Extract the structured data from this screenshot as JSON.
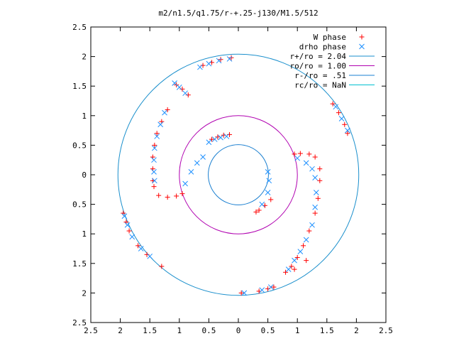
{
  "chart_data": {
    "type": "scatter",
    "title": "m2/n1.5/q1.75/r-+.25-j130/M1.5/512",
    "xlim": [
      -2.5,
      2.5
    ],
    "ylim": [
      -2.5,
      2.5
    ],
    "x_tick_values": [
      -2.5,
      -2,
      -1.5,
      -1,
      -0.5,
      0,
      0.5,
      1,
      1.5,
      2,
      2.5
    ],
    "x_tick_labels": [
      "2.5",
      "2",
      "1.5",
      "1",
      "0.5",
      "0",
      "0.5",
      "1",
      "1.5",
      "2",
      "2.5"
    ],
    "y_tick_values": [
      2.5,
      2,
      1.5,
      1,
      0.5,
      0,
      -0.5,
      -1,
      -1.5,
      -2,
      -2.5
    ],
    "y_tick_labels": [
      "2.5",
      "2",
      "1.5",
      "1",
      "0.5",
      "0",
      "0.5",
      "1",
      "1.5",
      "2",
      "2.5"
    ],
    "legend_position": "top-right",
    "grid": false,
    "series": [
      {
        "name": "W phase",
        "marker": "plus",
        "color": "#ff0000",
        "points": [
          [
            -0.45,
            0.6
          ],
          [
            -0.35,
            0.64
          ],
          [
            -0.25,
            0.67
          ],
          [
            -0.15,
            0.68
          ],
          [
            -0.85,
            1.35
          ],
          [
            -0.95,
            1.45
          ],
          [
            -1.05,
            1.52
          ],
          [
            -0.6,
            1.85
          ],
          [
            -0.45,
            1.9
          ],
          [
            -0.3,
            1.95
          ],
          [
            -0.12,
            1.98
          ],
          [
            -1.2,
            1.1
          ],
          [
            -1.3,
            0.9
          ],
          [
            -1.38,
            0.7
          ],
          [
            -1.42,
            0.5
          ],
          [
            -1.45,
            0.3
          ],
          [
            -1.45,
            0.1
          ],
          [
            -1.45,
            -0.1
          ],
          [
            -1.43,
            -0.2
          ],
          [
            -1.35,
            -0.35
          ],
          [
            -1.2,
            -0.38
          ],
          [
            -1.05,
            -0.36
          ],
          [
            -0.95,
            -0.32
          ],
          [
            0.95,
            0.35
          ],
          [
            1.05,
            0.36
          ],
          [
            1.2,
            0.35
          ],
          [
            1.3,
            0.3
          ],
          [
            1.38,
            0.1
          ],
          [
            1.38,
            -0.1
          ],
          [
            1.35,
            -0.4
          ],
          [
            1.3,
            -0.65
          ],
          [
            1.2,
            -0.95
          ],
          [
            1.1,
            -1.2
          ],
          [
            1.0,
            -1.4
          ],
          [
            0.9,
            -1.55
          ],
          [
            0.8,
            -1.65
          ],
          [
            1.15,
            -1.45
          ],
          [
            0.95,
            -1.6
          ],
          [
            0.3,
            -0.63
          ],
          [
            0.35,
            -0.6
          ],
          [
            0.45,
            -0.52
          ],
          [
            0.55,
            -0.42
          ],
          [
            1.6,
            1.2
          ],
          [
            1.7,
            1.05
          ],
          [
            1.8,
            0.85
          ],
          [
            1.85,
            0.7
          ],
          [
            -1.95,
            -0.65
          ],
          [
            -1.9,
            -0.8
          ],
          [
            -1.85,
            -0.95
          ],
          [
            -1.7,
            -1.2
          ],
          [
            -1.55,
            -1.35
          ],
          [
            -1.3,
            -1.55
          ],
          [
            0.05,
            -2.0
          ],
          [
            0.35,
            -1.97
          ],
          [
            0.5,
            -1.93
          ],
          [
            0.6,
            -1.9
          ]
        ]
      },
      {
        "name": "drho phase",
        "marker": "cross",
        "color": "#1e90ff",
        "points": [
          [
            -0.5,
            0.55
          ],
          [
            -0.4,
            0.6
          ],
          [
            -0.3,
            0.63
          ],
          [
            -0.2,
            0.65
          ],
          [
            -0.9,
            1.38
          ],
          [
            -1.0,
            1.48
          ],
          [
            -1.08,
            1.55
          ],
          [
            -0.65,
            1.82
          ],
          [
            -0.5,
            1.88
          ],
          [
            -0.33,
            1.93
          ],
          [
            -0.15,
            1.96
          ],
          [
            -1.25,
            1.05
          ],
          [
            -1.32,
            0.85
          ],
          [
            -1.38,
            0.65
          ],
          [
            -1.42,
            0.45
          ],
          [
            -1.43,
            0.25
          ],
          [
            -1.43,
            0.05
          ],
          [
            -1.42,
            -0.1
          ],
          [
            -0.9,
            -0.15
          ],
          [
            -0.8,
            0.05
          ],
          [
            -0.7,
            0.2
          ],
          [
            -0.6,
            0.3
          ],
          [
            1.0,
            0.28
          ],
          [
            1.15,
            0.2
          ],
          [
            1.25,
            0.1
          ],
          [
            1.3,
            -0.05
          ],
          [
            1.32,
            -0.3
          ],
          [
            1.3,
            -0.55
          ],
          [
            1.25,
            -0.85
          ],
          [
            1.15,
            -1.1
          ],
          [
            1.05,
            -1.3
          ],
          [
            0.95,
            -1.45
          ],
          [
            0.85,
            -1.6
          ],
          [
            0.5,
            0.05
          ],
          [
            0.52,
            -0.1
          ],
          [
            0.5,
            -0.3
          ],
          [
            0.4,
            -0.5
          ],
          [
            1.65,
            1.15
          ],
          [
            1.75,
            0.95
          ],
          [
            1.85,
            0.75
          ],
          [
            -1.93,
            -0.7
          ],
          [
            -1.88,
            -0.85
          ],
          [
            -1.8,
            -1.05
          ],
          [
            -1.65,
            -1.25
          ],
          [
            -1.5,
            -1.38
          ],
          [
            0.1,
            -2.0
          ],
          [
            0.4,
            -1.95
          ],
          [
            0.55,
            -1.9
          ]
        ]
      }
    ],
    "circles": [
      {
        "name": "r+/ro = 2.04",
        "radius": 2.04,
        "color": "#1a8fcc"
      },
      {
        "name": "ro/ro = 1.00",
        "radius": 1.0,
        "color": "#b000b0"
      },
      {
        "name": "r-/ro = .51",
        "radius": 0.51,
        "color": "#1a7fd0"
      },
      {
        "name": "rc/ro = NaN",
        "radius": null,
        "color": "#00c0d0"
      }
    ]
  }
}
